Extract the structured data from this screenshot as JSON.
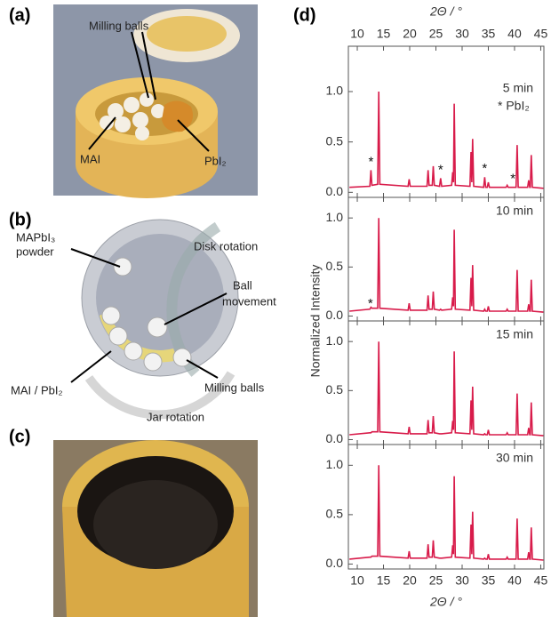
{
  "panels": {
    "a": {
      "label": "(a)",
      "texts": [
        "Milling balls",
        "MAI",
        "PbI₂"
      ]
    },
    "b": {
      "label": "(b)",
      "texts": [
        "MAPbI₃",
        "powder",
        "Disk rotation",
        "Ball",
        "movement",
        "MAI / PbI₂",
        "Milling balls",
        "Jar rotation"
      ]
    },
    "c": {
      "label": "(c)"
    },
    "d": {
      "label": "(d)"
    }
  },
  "chart_data": [
    {
      "type": "line",
      "label": "5 min",
      "legend_note": "* PbI₂",
      "xlabel": "2Θ / °",
      "x": [
        8.5,
        12.4,
        12.6,
        12.8,
        13.9,
        14.1,
        14.3,
        19.7,
        19.9,
        20.1,
        23.3,
        23.5,
        23.7,
        24.3,
        24.5,
        24.7,
        25.7,
        25.9,
        26.1,
        28.0,
        28.2,
        28.35,
        28.5,
        28.7,
        31.5,
        31.7,
        31.85,
        32.0,
        32.2,
        34.1,
        34.3,
        34.5,
        34.8,
        35.0,
        35.2,
        38.4,
        38.6,
        38.8,
        40.3,
        40.5,
        40.7,
        42.5,
        42.7,
        42.9,
        43.0,
        43.2,
        43.4,
        45.5
      ],
      "series": [
        {
          "color": "#d81b4a",
          "values": [
            0.05,
            0.06,
            0.22,
            0.07,
            0.08,
            1.0,
            0.08,
            0.06,
            0.13,
            0.06,
            0.06,
            0.22,
            0.07,
            0.07,
            0.26,
            0.07,
            0.06,
            0.14,
            0.06,
            0.07,
            0.2,
            0.1,
            0.88,
            0.07,
            0.06,
            0.4,
            0.1,
            0.53,
            0.06,
            0.05,
            0.15,
            0.05,
            0.05,
            0.1,
            0.05,
            0.05,
            0.07,
            0.05,
            0.05,
            0.47,
            0.05,
            0.05,
            0.12,
            0.05,
            0.05,
            0.37,
            0.05,
            0.04
          ]
        }
      ],
      "annotations": [
        {
          "text": "*",
          "x": 12.6,
          "y": 0.3
        },
        {
          "text": "*",
          "x": 25.9,
          "y": 0.22
        },
        {
          "text": "*",
          "x": 34.3,
          "y": 0.23
        },
        {
          "text": "*",
          "x": 39.7,
          "y": 0.13
        }
      ],
      "xlim": [
        8.3,
        45.6
      ],
      "ylim": [
        -0.05,
        1.45
      ],
      "xticks": [
        10,
        15,
        20,
        25,
        30,
        35,
        40,
        45
      ],
      "yticks": [
        {
          "value": 0,
          "label": "0.0"
        },
        {
          "value": 0.5,
          "label": "0.5"
        },
        {
          "value": 1,
          "label": "1.0"
        }
      ]
    },
    {
      "type": "line",
      "label": "10 min",
      "ylabel": "Normalized Intensity",
      "x": [
        8.5,
        12.4,
        12.6,
        12.8,
        13.9,
        14.1,
        14.3,
        19.7,
        19.9,
        20.1,
        23.3,
        23.5,
        23.7,
        24.3,
        24.5,
        24.7,
        25.7,
        25.9,
        26.1,
        28.0,
        28.2,
        28.35,
        28.5,
        28.7,
        31.5,
        31.7,
        31.85,
        32.0,
        32.2,
        34.1,
        34.3,
        34.5,
        34.8,
        35.0,
        35.2,
        38.4,
        38.6,
        38.8,
        40.3,
        40.5,
        40.7,
        42.5,
        42.7,
        42.9,
        43.0,
        43.2,
        43.4,
        45.5
      ],
      "series": [
        {
          "color": "#d81b4a",
          "values": [
            0.05,
            0.07,
            0.09,
            0.08,
            0.08,
            1.0,
            0.08,
            0.06,
            0.13,
            0.06,
            0.06,
            0.21,
            0.07,
            0.07,
            0.25,
            0.07,
            0.06,
            0.07,
            0.06,
            0.07,
            0.19,
            0.1,
            0.88,
            0.07,
            0.06,
            0.39,
            0.1,
            0.52,
            0.06,
            0.05,
            0.07,
            0.05,
            0.05,
            0.1,
            0.05,
            0.05,
            0.07,
            0.05,
            0.05,
            0.47,
            0.05,
            0.05,
            0.12,
            0.05,
            0.05,
            0.37,
            0.05,
            0.04
          ]
        }
      ],
      "annotations": [
        {
          "text": "*",
          "x": 12.5,
          "y": 0.12
        }
      ],
      "xlim": [
        8.3,
        45.6
      ],
      "ylim": [
        -0.05,
        1.21
      ],
      "xticks": [
        10,
        15,
        20,
        25,
        30,
        35,
        40,
        45
      ],
      "yticks": [
        {
          "value": 0,
          "label": "0.0"
        },
        {
          "value": 0.5,
          "label": "0.5"
        },
        {
          "value": 1,
          "label": "1.0"
        }
      ]
    },
    {
      "type": "line",
      "label": "15 min",
      "x": [
        8.5,
        12.4,
        12.6,
        12.8,
        13.9,
        14.1,
        14.3,
        19.7,
        19.9,
        20.1,
        23.3,
        23.5,
        23.7,
        24.3,
        24.5,
        24.7,
        25.7,
        25.9,
        26.1,
        28.0,
        28.2,
        28.35,
        28.5,
        28.7,
        31.5,
        31.7,
        31.85,
        32.0,
        32.2,
        34.1,
        34.3,
        34.5,
        34.8,
        35.0,
        35.2,
        38.4,
        38.6,
        38.8,
        40.3,
        40.5,
        40.7,
        42.5,
        42.7,
        42.9,
        43.0,
        43.2,
        43.4,
        45.5
      ],
      "series": [
        {
          "color": "#d81b4a",
          "values": [
            0.05,
            0.07,
            0.07,
            0.08,
            0.08,
            1.0,
            0.08,
            0.06,
            0.13,
            0.06,
            0.06,
            0.2,
            0.07,
            0.07,
            0.24,
            0.07,
            0.06,
            0.06,
            0.06,
            0.07,
            0.19,
            0.1,
            0.9,
            0.07,
            0.06,
            0.4,
            0.1,
            0.54,
            0.06,
            0.05,
            0.06,
            0.05,
            0.05,
            0.1,
            0.05,
            0.05,
            0.07,
            0.05,
            0.05,
            0.47,
            0.05,
            0.05,
            0.12,
            0.05,
            0.05,
            0.38,
            0.05,
            0.04
          ]
        }
      ],
      "xlim": [
        8.3,
        45.6
      ],
      "ylim": [
        -0.05,
        1.21
      ],
      "xticks": [
        10,
        15,
        20,
        25,
        30,
        35,
        40,
        45
      ],
      "yticks": [
        {
          "value": 0,
          "label": "0.0"
        },
        {
          "value": 0.5,
          "label": "0.5"
        },
        {
          "value": 1,
          "label": "1.0"
        }
      ]
    },
    {
      "type": "line",
      "label": "30 min",
      "xlabel": "2Θ / °",
      "x": [
        8.5,
        12.4,
        12.6,
        12.8,
        13.9,
        14.1,
        14.3,
        19.7,
        19.9,
        20.1,
        23.3,
        23.5,
        23.7,
        24.3,
        24.5,
        24.7,
        25.7,
        25.9,
        26.1,
        28.0,
        28.2,
        28.35,
        28.5,
        28.7,
        31.5,
        31.7,
        31.85,
        32.0,
        32.2,
        34.1,
        34.3,
        34.5,
        34.8,
        35.0,
        35.2,
        38.4,
        38.6,
        38.8,
        40.3,
        40.5,
        40.7,
        42.5,
        42.7,
        42.9,
        43.0,
        43.2,
        43.4,
        45.5
      ],
      "series": [
        {
          "color": "#d81b4a",
          "values": [
            0.05,
            0.07,
            0.07,
            0.08,
            0.08,
            1.0,
            0.08,
            0.06,
            0.13,
            0.06,
            0.06,
            0.2,
            0.07,
            0.07,
            0.24,
            0.07,
            0.06,
            0.06,
            0.06,
            0.07,
            0.19,
            0.1,
            0.89,
            0.07,
            0.06,
            0.4,
            0.1,
            0.53,
            0.06,
            0.05,
            0.06,
            0.05,
            0.05,
            0.1,
            0.05,
            0.05,
            0.07,
            0.05,
            0.05,
            0.46,
            0.05,
            0.05,
            0.12,
            0.05,
            0.05,
            0.37,
            0.05,
            0.04
          ]
        }
      ],
      "xlim": [
        8.3,
        45.6
      ],
      "ylim": [
        -0.05,
        1.21
      ],
      "xticks": [
        10,
        15,
        20,
        25,
        30,
        35,
        40,
        45
      ],
      "yticks": [
        {
          "value": 0,
          "label": "0.0"
        },
        {
          "value": 0.5,
          "label": "0.5"
        },
        {
          "value": 1,
          "label": "1.0"
        }
      ]
    }
  ]
}
